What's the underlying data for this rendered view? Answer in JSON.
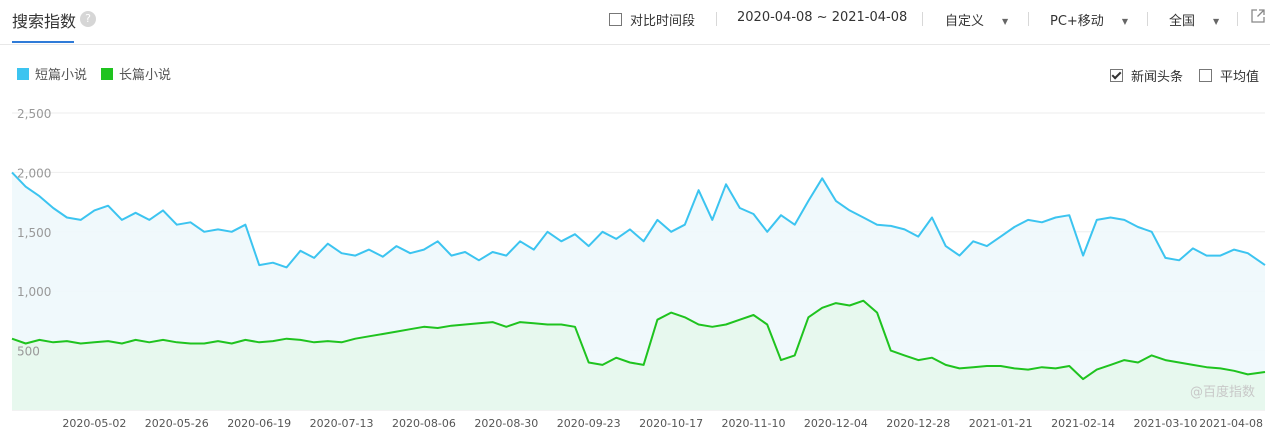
{
  "header": {
    "title": "搜索指数",
    "help_icon": "?",
    "compare_label": "对比时间段",
    "date_range": "2020-04-08 ~ 2021-04-08",
    "period_select": "自定义",
    "device_select": "PC+移动",
    "region_select": "全国",
    "share_icon": "external-link-icon"
  },
  "legend": [
    {
      "label": "短篇小说",
      "color": "#3cc4f0"
    },
    {
      "label": "长篇小说",
      "color": "#1fc31f"
    }
  ],
  "options": {
    "news_label": "新闻头条",
    "news_checked": true,
    "avg_label": "平均值",
    "avg_checked": false
  },
  "watermark": "@百度指数",
  "colors": {
    "series1": "#3cc4f0",
    "series1_fill": "#eef8fc",
    "series2": "#1fc31f",
    "series2_fill": "#e6f7ec",
    "accent": "#2f7bd8"
  },
  "chart_data": {
    "type": "line",
    "x_range": [
      "2020-04-08",
      "2021-04-08"
    ],
    "ylim": [
      0,
      2500
    ],
    "yticks": [
      "2,500",
      "2,000",
      "1,500",
      "1,000",
      "500"
    ],
    "ytick_values": [
      2500,
      2000,
      1500,
      1000,
      500
    ],
    "xticks": [
      "2020-05-02",
      "2020-05-26",
      "2020-06-19",
      "2020-07-13",
      "2020-08-06",
      "2020-08-30",
      "2020-09-23",
      "2020-10-17",
      "2020-11-10",
      "2020-12-04",
      "2020-12-28",
      "2021-01-21",
      "2021-02-14",
      "2021-03-10",
      "2021-04-08"
    ],
    "grid": true,
    "series": [
      {
        "name": "短篇小说",
        "color": "#3cc4f0",
        "points": [
          [
            "2020-04-08",
            2000
          ],
          [
            "2020-04-12",
            1880
          ],
          [
            "2020-04-16",
            1800
          ],
          [
            "2020-04-20",
            1700
          ],
          [
            "2020-04-24",
            1620
          ],
          [
            "2020-04-28",
            1600
          ],
          [
            "2020-05-02",
            1680
          ],
          [
            "2020-05-06",
            1720
          ],
          [
            "2020-05-10",
            1600
          ],
          [
            "2020-05-14",
            1660
          ],
          [
            "2020-05-18",
            1600
          ],
          [
            "2020-05-22",
            1680
          ],
          [
            "2020-05-26",
            1560
          ],
          [
            "2020-05-30",
            1580
          ],
          [
            "2020-06-03",
            1500
          ],
          [
            "2020-06-07",
            1520
          ],
          [
            "2020-06-11",
            1500
          ],
          [
            "2020-06-15",
            1560
          ],
          [
            "2020-06-19",
            1220
          ],
          [
            "2020-06-23",
            1240
          ],
          [
            "2020-06-27",
            1200
          ],
          [
            "2020-07-01",
            1340
          ],
          [
            "2020-07-05",
            1280
          ],
          [
            "2020-07-09",
            1400
          ],
          [
            "2020-07-13",
            1320
          ],
          [
            "2020-07-17",
            1300
          ],
          [
            "2020-07-21",
            1350
          ],
          [
            "2020-07-25",
            1290
          ],
          [
            "2020-07-29",
            1380
          ],
          [
            "2020-08-02",
            1320
          ],
          [
            "2020-08-06",
            1350
          ],
          [
            "2020-08-10",
            1420
          ],
          [
            "2020-08-14",
            1300
          ],
          [
            "2020-08-18",
            1330
          ],
          [
            "2020-08-22",
            1260
          ],
          [
            "2020-08-26",
            1330
          ],
          [
            "2020-08-30",
            1300
          ],
          [
            "2020-09-03",
            1420
          ],
          [
            "2020-09-07",
            1350
          ],
          [
            "2020-09-11",
            1500
          ],
          [
            "2020-09-15",
            1420
          ],
          [
            "2020-09-19",
            1480
          ],
          [
            "2020-09-23",
            1380
          ],
          [
            "2020-09-27",
            1500
          ],
          [
            "2020-10-01",
            1440
          ],
          [
            "2020-10-05",
            1520
          ],
          [
            "2020-10-09",
            1420
          ],
          [
            "2020-10-13",
            1600
          ],
          [
            "2020-10-17",
            1500
          ],
          [
            "2020-10-21",
            1560
          ],
          [
            "2020-10-25",
            1850
          ],
          [
            "2020-10-29",
            1600
          ],
          [
            "2020-11-02",
            1900
          ],
          [
            "2020-11-06",
            1700
          ],
          [
            "2020-11-10",
            1650
          ],
          [
            "2020-11-14",
            1500
          ],
          [
            "2020-11-18",
            1640
          ],
          [
            "2020-11-22",
            1560
          ],
          [
            "2020-11-26",
            1760
          ],
          [
            "2020-11-30",
            1950
          ],
          [
            "2020-12-04",
            1760
          ],
          [
            "2020-12-08",
            1680
          ],
          [
            "2020-12-12",
            1620
          ],
          [
            "2020-12-16",
            1560
          ],
          [
            "2020-12-20",
            1550
          ],
          [
            "2020-12-24",
            1520
          ],
          [
            "2020-12-28",
            1460
          ],
          [
            "2021-01-01",
            1620
          ],
          [
            "2021-01-05",
            1380
          ],
          [
            "2021-01-09",
            1300
          ],
          [
            "2021-01-13",
            1420
          ],
          [
            "2021-01-17",
            1380
          ],
          [
            "2021-01-21",
            1460
          ],
          [
            "2021-01-25",
            1540
          ],
          [
            "2021-01-29",
            1600
          ],
          [
            "2021-02-02",
            1580
          ],
          [
            "2021-02-06",
            1620
          ],
          [
            "2021-02-10",
            1640
          ],
          [
            "2021-02-14",
            1300
          ],
          [
            "2021-02-18",
            1600
          ],
          [
            "2021-02-22",
            1620
          ],
          [
            "2021-02-26",
            1600
          ],
          [
            "2021-03-02",
            1540
          ],
          [
            "2021-03-06",
            1500
          ],
          [
            "2021-03-10",
            1280
          ],
          [
            "2021-03-14",
            1260
          ],
          [
            "2021-03-18",
            1360
          ],
          [
            "2021-03-22",
            1300
          ],
          [
            "2021-03-26",
            1300
          ],
          [
            "2021-03-30",
            1350
          ],
          [
            "2021-04-03",
            1320
          ],
          [
            "2021-04-08",
            1220
          ]
        ]
      },
      {
        "name": "长篇小说",
        "color": "#1fc31f",
        "points": [
          [
            "2020-04-08",
            600
          ],
          [
            "2020-04-12",
            560
          ],
          [
            "2020-04-16",
            590
          ],
          [
            "2020-04-20",
            570
          ],
          [
            "2020-04-24",
            580
          ],
          [
            "2020-04-28",
            560
          ],
          [
            "2020-05-02",
            570
          ],
          [
            "2020-05-06",
            580
          ],
          [
            "2020-05-10",
            560
          ],
          [
            "2020-05-14",
            590
          ],
          [
            "2020-05-18",
            570
          ],
          [
            "2020-05-22",
            590
          ],
          [
            "2020-05-26",
            570
          ],
          [
            "2020-05-30",
            560
          ],
          [
            "2020-06-03",
            560
          ],
          [
            "2020-06-07",
            580
          ],
          [
            "2020-06-11",
            560
          ],
          [
            "2020-06-15",
            590
          ],
          [
            "2020-06-19",
            570
          ],
          [
            "2020-06-23",
            580
          ],
          [
            "2020-06-27",
            600
          ],
          [
            "2020-07-01",
            590
          ],
          [
            "2020-07-05",
            570
          ],
          [
            "2020-07-09",
            580
          ],
          [
            "2020-07-13",
            570
          ],
          [
            "2020-07-17",
            600
          ],
          [
            "2020-07-21",
            620
          ],
          [
            "2020-07-25",
            640
          ],
          [
            "2020-07-29",
            660
          ],
          [
            "2020-08-02",
            680
          ],
          [
            "2020-08-06",
            700
          ],
          [
            "2020-08-10",
            690
          ],
          [
            "2020-08-14",
            710
          ],
          [
            "2020-08-18",
            720
          ],
          [
            "2020-08-22",
            730
          ],
          [
            "2020-08-26",
            740
          ],
          [
            "2020-08-30",
            700
          ],
          [
            "2020-09-03",
            740
          ],
          [
            "2020-09-07",
            730
          ],
          [
            "2020-09-11",
            720
          ],
          [
            "2020-09-15",
            720
          ],
          [
            "2020-09-19",
            700
          ],
          [
            "2020-09-23",
            400
          ],
          [
            "2020-09-27",
            380
          ],
          [
            "2020-10-01",
            440
          ],
          [
            "2020-10-05",
            400
          ],
          [
            "2020-10-09",
            380
          ],
          [
            "2020-10-13",
            760
          ],
          [
            "2020-10-17",
            820
          ],
          [
            "2020-10-21",
            780
          ],
          [
            "2020-10-25",
            720
          ],
          [
            "2020-10-29",
            700
          ],
          [
            "2020-11-02",
            720
          ],
          [
            "2020-11-06",
            760
          ],
          [
            "2020-11-10",
            800
          ],
          [
            "2020-11-14",
            720
          ],
          [
            "2020-11-18",
            420
          ],
          [
            "2020-11-22",
            460
          ],
          [
            "2020-11-26",
            780
          ],
          [
            "2020-11-30",
            860
          ],
          [
            "2020-12-04",
            900
          ],
          [
            "2020-12-08",
            880
          ],
          [
            "2020-12-12",
            920
          ],
          [
            "2020-12-16",
            820
          ],
          [
            "2020-12-20",
            500
          ],
          [
            "2020-12-24",
            460
          ],
          [
            "2020-12-28",
            420
          ],
          [
            "2021-01-01",
            440
          ],
          [
            "2021-01-05",
            380
          ],
          [
            "2021-01-09",
            350
          ],
          [
            "2021-01-13",
            360
          ],
          [
            "2021-01-17",
            370
          ],
          [
            "2021-01-21",
            370
          ],
          [
            "2021-01-25",
            350
          ],
          [
            "2021-01-29",
            340
          ],
          [
            "2021-02-02",
            360
          ],
          [
            "2021-02-06",
            350
          ],
          [
            "2021-02-10",
            370
          ],
          [
            "2021-02-14",
            260
          ],
          [
            "2021-02-18",
            340
          ],
          [
            "2021-02-22",
            380
          ],
          [
            "2021-02-26",
            420
          ],
          [
            "2021-03-02",
            400
          ],
          [
            "2021-03-06",
            460
          ],
          [
            "2021-03-10",
            420
          ],
          [
            "2021-03-14",
            400
          ],
          [
            "2021-03-18",
            380
          ],
          [
            "2021-03-22",
            360
          ],
          [
            "2021-03-26",
            350
          ],
          [
            "2021-03-30",
            330
          ],
          [
            "2021-04-03",
            300
          ],
          [
            "2021-04-08",
            320
          ]
        ]
      }
    ]
  }
}
